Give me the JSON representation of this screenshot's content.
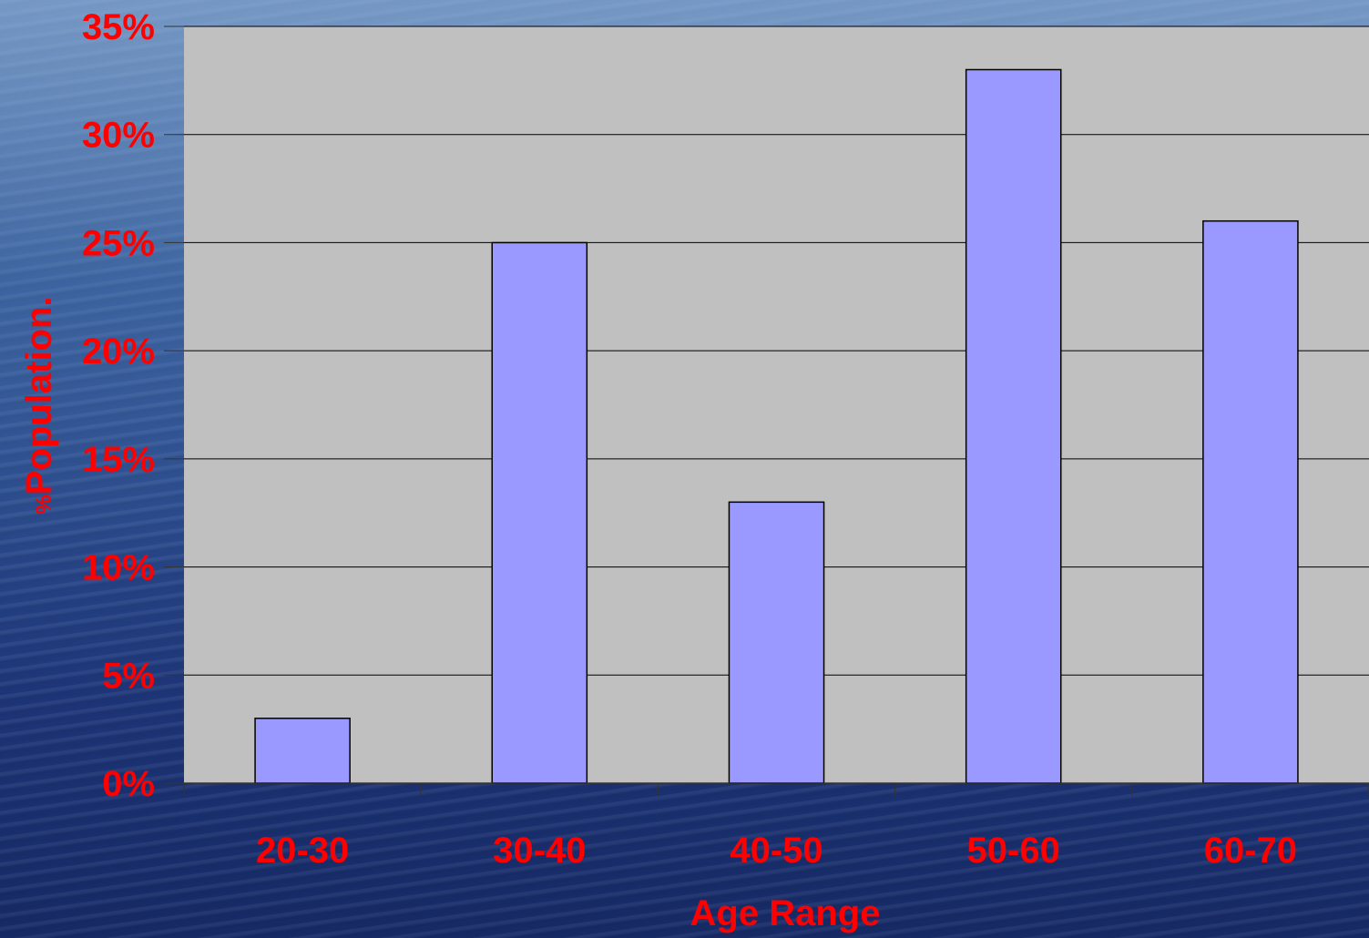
{
  "chart_data": {
    "type": "bar",
    "categories": [
      "20-30",
      "30-40",
      "40-50",
      "50-60",
      "60-70"
    ],
    "values": [
      3,
      25,
      13,
      33,
      26
    ],
    "ylim": [
      0,
      35
    ],
    "yticks": [
      "0%",
      "5%",
      "10%",
      "15%",
      "20%",
      "25%",
      "30%",
      "35%"
    ],
    "xlabel": "Age Range",
    "ylabel_prefix": "%",
    "ylabel": "Population.",
    "grid": true,
    "legend": "none"
  },
  "colors": {
    "plot_bg": "#c0c0c0",
    "bar_fill": "#9999ff",
    "label": "#ff0000"
  }
}
